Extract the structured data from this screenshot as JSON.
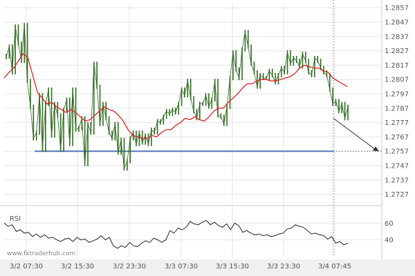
{
  "chart_data": {
    "type": "line",
    "price_axis": {
      "ticks": [
        "1.2857",
        "1.2847",
        "1.2837",
        "1.2827",
        "1.2817",
        "1.2807",
        "1.2797",
        "1.2787",
        "1.2777",
        "1.2767",
        "1.2757",
        "1.2747",
        "1.2737",
        "1.2727"
      ],
      "ylim": [
        1.2722,
        1.286
      ]
    },
    "x_ticks": [
      "3/2 07:30",
      "3/2 15:30",
      "3/2 23:30",
      "3/3 07:30",
      "3/3 15:30",
      "3/3 23:30",
      "3/4 07:45"
    ],
    "price_series": [
      1.2823,
      1.283,
      1.2812,
      1.2844,
      1.2832,
      1.282,
      1.2845,
      1.2806,
      1.2788,
      1.2766,
      1.277,
      1.2796,
      1.2758,
      1.279,
      1.28,
      1.2768,
      1.279,
      1.2782,
      1.2758,
      1.2786,
      1.2793,
      1.2762,
      1.28,
      1.2772,
      1.2773,
      1.278,
      1.2748,
      1.2776,
      1.277,
      1.2818,
      1.2802,
      1.2776,
      1.279,
      1.278,
      1.277,
      1.2766,
      1.2776,
      1.2756,
      1.2765,
      1.2745,
      1.275,
      1.2766,
      1.277,
      1.2762,
      1.277,
      1.2763,
      1.2768,
      1.2762,
      1.2772,
      1.277,
      1.2778,
      1.2777,
      1.2781,
      1.2785,
      1.2783,
      1.2786,
      1.2784,
      1.279,
      1.28,
      1.2796,
      1.2806,
      1.2794,
      1.2785,
      1.278,
      1.279,
      1.279,
      1.2796,
      1.2788,
      1.2793,
      1.2806,
      1.2782,
      1.2781,
      1.2776,
      1.2788,
      1.2808,
      1.2826,
      1.2814,
      1.2808,
      1.2828,
      1.284,
      1.283,
      1.2818,
      1.2812,
      1.2802,
      1.281,
      1.2808,
      1.2808,
      1.2813,
      1.281,
      1.2805,
      1.281,
      1.2815,
      1.2812,
      1.2826,
      1.2818,
      1.2822,
      1.282,
      1.2816,
      1.2825,
      1.282,
      1.2812,
      1.281,
      1.2822,
      1.282,
      1.2815,
      1.2812,
      1.281,
      1.28,
      1.279,
      1.2792,
      1.2785,
      1.279,
      1.278,
      1.2788
    ],
    "moving_average": [
      1.2808,
      1.2812,
      1.2815,
      1.282,
      1.2825,
      1.2822,
      1.281,
      1.2798,
      1.2794,
      1.279,
      1.2791,
      1.2788,
      1.2786,
      1.2784,
      1.2786,
      1.2784,
      1.2781,
      1.2778,
      1.2779,
      1.2782,
      1.2785,
      1.2788,
      1.2786,
      1.2785,
      1.2782,
      1.2778,
      1.2772,
      1.2768,
      1.2767,
      1.2766,
      1.2766,
      1.2768,
      1.2767,
      1.277,
      1.2772,
      1.2772,
      1.2775,
      1.2777,
      1.278,
      1.2779,
      1.2781,
      1.2779,
      1.2778,
      1.2781,
      1.2785,
      1.2787,
      1.2787,
      1.2791,
      1.2794,
      1.2797,
      1.2801,
      1.2804,
      1.2804,
      1.2806,
      1.2807,
      1.2807,
      1.2806,
      1.2806,
      1.2807,
      1.2808,
      1.2809,
      1.2811,
      1.2815,
      1.2817,
      1.2816,
      1.2815,
      1.2815,
      1.2813,
      1.2812,
      1.2808,
      1.2806,
      1.2804,
      1.2802
    ],
    "support_level": 1.2757,
    "projection": {
      "from": 1.278,
      "to": 1.2757
    },
    "rsi": {
      "label": "RSI",
      "ticks": [
        "60",
        "40"
      ],
      "values": [
        60,
        56,
        58,
        50,
        52,
        48,
        49,
        44,
        47,
        43,
        46,
        42,
        43,
        40,
        38,
        41,
        42,
        38,
        43,
        40,
        41,
        37,
        39,
        41,
        45,
        40,
        43,
        33,
        30,
        33,
        31,
        37,
        33,
        32,
        36,
        39,
        37,
        42,
        40,
        37,
        40,
        51,
        48,
        54,
        52,
        55,
        62,
        59,
        58,
        61,
        63,
        58,
        61,
        57,
        55,
        59,
        52,
        60,
        57,
        49,
        51,
        48,
        46,
        47,
        45,
        46,
        44,
        45,
        47,
        48,
        53,
        54,
        58,
        56,
        55,
        51,
        47,
        48,
        46,
        45,
        41,
        44,
        36,
        38,
        34,
        36
      ]
    }
  },
  "watermark": "www.fxtraderhub.com",
  "colors": {
    "candle": "#2e6b1f",
    "ma": "#e02020",
    "support": "#5a7dbf",
    "grid": "#e6e6e6",
    "projection": "#333333",
    "rsi": "#222222"
  }
}
